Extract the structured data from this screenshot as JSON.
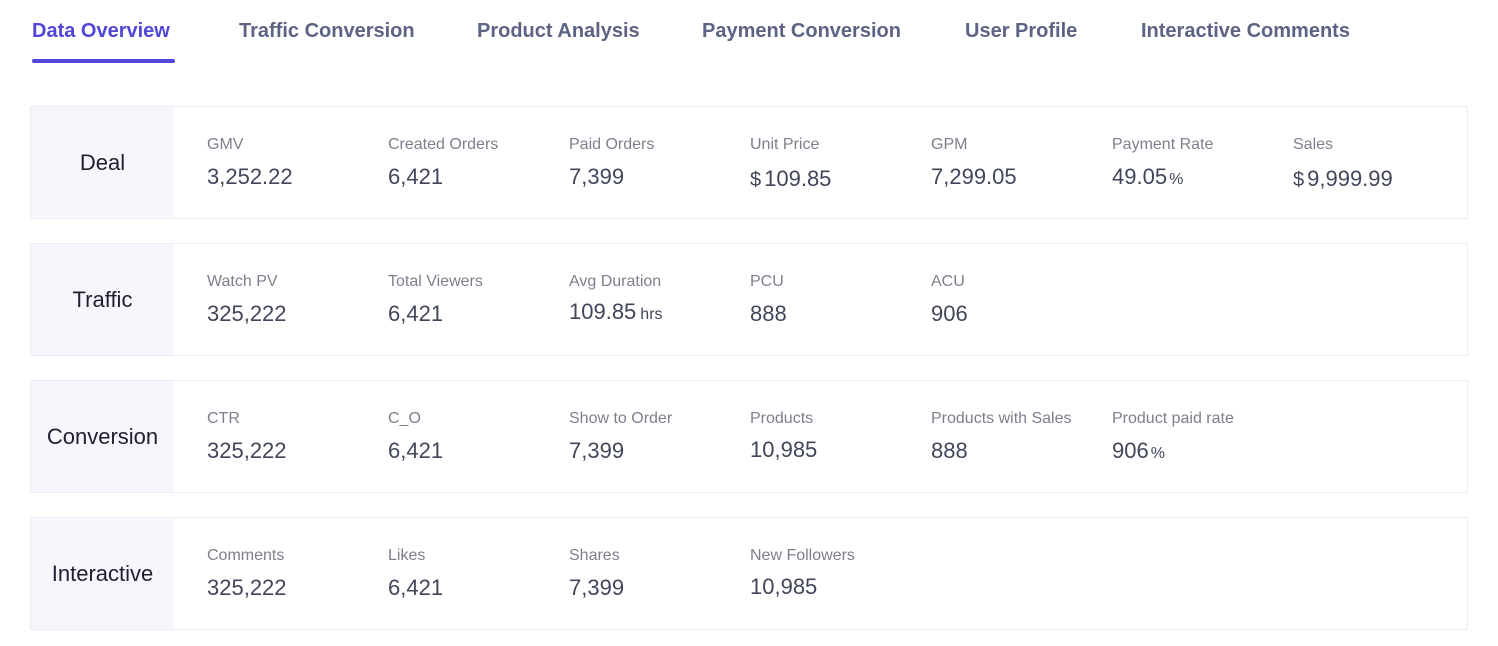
{
  "tabs": [
    {
      "label": "Data Overview",
      "active": true
    },
    {
      "label": "Traffic Conversion",
      "active": false
    },
    {
      "label": "Product Analysis",
      "active": false
    },
    {
      "label": "Payment Conversion",
      "active": false
    },
    {
      "label": "User Profile",
      "active": false
    },
    {
      "label": "Interactive Comments",
      "active": false
    }
  ],
  "colors": {
    "accent": "#5046d8",
    "tab_inactive": "#5c6383",
    "label_bg": "#f6f6fc",
    "border": "#ececf2",
    "metric_label": "#7d7f8c",
    "metric_value": "#41465a"
  },
  "sections": {
    "deal": {
      "title": "Deal",
      "metrics": [
        {
          "label": "GMV",
          "value": "3,252.22"
        },
        {
          "label": "Created Orders",
          "value": "6,421"
        },
        {
          "label": "Paid Orders",
          "value": "7,399"
        },
        {
          "label": "Unit Price",
          "prefix": "$",
          "value": "109.85"
        },
        {
          "label": "GPM",
          "value": "7,299.05"
        },
        {
          "label": "Payment Rate",
          "value": "49.05",
          "suffix": "%"
        },
        {
          "label": "Sales",
          "prefix": "$",
          "value": "9,999.99"
        }
      ]
    },
    "traffic": {
      "title": "Traffic",
      "metrics": [
        {
          "label": "Watch PV",
          "value": "325,222"
        },
        {
          "label": "Total Viewers",
          "value": "6,421"
        },
        {
          "label": "Avg Duration",
          "value": "109.85",
          "suffix": "hrs"
        },
        {
          "label": "PCU",
          "value": "888"
        },
        {
          "label": "ACU",
          "value": "906"
        }
      ]
    },
    "conversion": {
      "title": "Conversion",
      "metrics": [
        {
          "label": "CTR",
          "value": "325,222"
        },
        {
          "label": "C_O",
          "value": "6,421"
        },
        {
          "label": "Show to Order",
          "value": "7,399"
        },
        {
          "label": "Products",
          "value": "10,985"
        },
        {
          "label": "Products with Sales",
          "value": "888"
        },
        {
          "label": "Product paid rate",
          "value": "906",
          "suffix": "%"
        }
      ]
    },
    "interactive": {
      "title": "Interactive",
      "metrics": [
        {
          "label": "Comments",
          "value": "325,222"
        },
        {
          "label": "Likes",
          "value": "6,421"
        },
        {
          "label": "Shares",
          "value": "7,399"
        },
        {
          "label": "New Followers",
          "value": "10,985"
        }
      ]
    }
  }
}
